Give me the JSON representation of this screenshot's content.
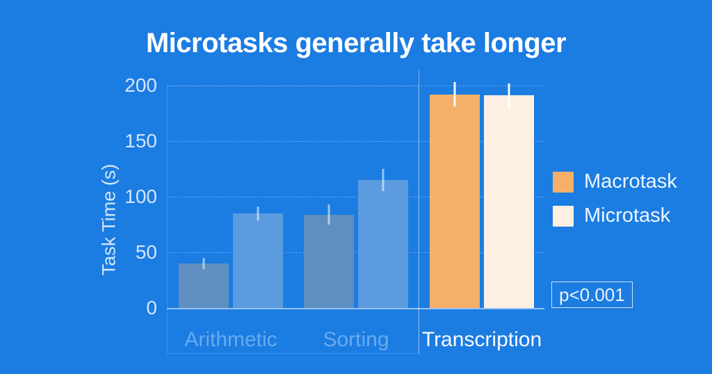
{
  "chart_data": {
    "type": "bar",
    "title": "Microtasks generally take longer",
    "xlabel": "",
    "ylabel": "Task Time (s)",
    "categories": [
      "Arithmetic",
      "Sorting",
      "Transcription"
    ],
    "series": [
      {
        "name": "Macrotask",
        "values": [
          40,
          84,
          192
        ],
        "errors": [
          5,
          9,
          11
        ]
      },
      {
        "name": "Microtask",
        "values": [
          85,
          115,
          191
        ],
        "errors": [
          6,
          10,
          11
        ]
      }
    ],
    "ylim": [
      0,
      214
    ],
    "yticks": [
      0,
      50,
      100,
      150,
      200
    ],
    "grid": true,
    "legend_position": "right",
    "annotation": "p<0.001",
    "highlighted_category": "Transcription",
    "dimmed_categories": [
      "Arithmetic",
      "Sorting"
    ]
  },
  "colors": {
    "background": "#1b7ce2",
    "title_text": "#ffffff",
    "axis_text": "#d3e6fb",
    "gridline": "rgba(255,255,255,0.30)",
    "series": {
      "Macrotask": "#f4b069",
      "Microtask": "#fdf0e3"
    },
    "series_dimmed": {
      "Macrotask": "#5e8fc0",
      "Microtask": "#5c9bdf"
    }
  }
}
